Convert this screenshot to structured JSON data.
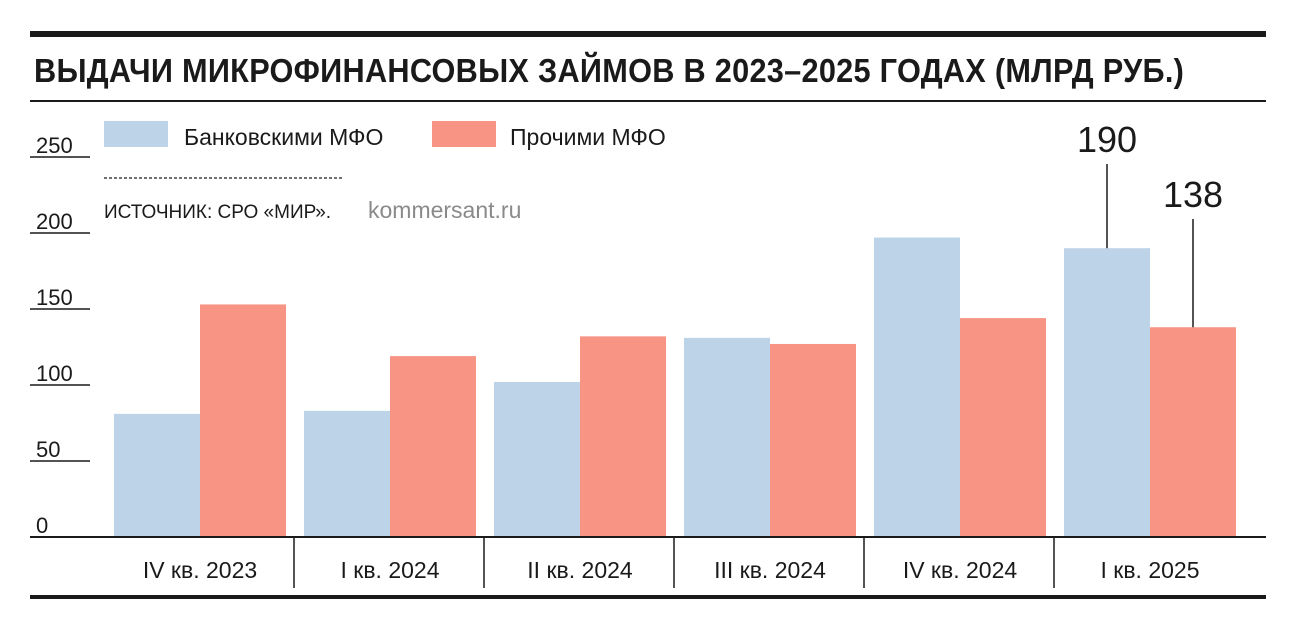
{
  "chart_data": {
    "type": "bar",
    "title": "ВЫДАЧИ МИКРОФИНАНСОВЫХ ЗАЙМОВ В 2023–2025 ГОДАХ (МЛРД РУБ.)",
    "categories": [
      "IV кв. 2023",
      "I кв. 2024",
      "II кв. 2024",
      "III кв. 2024",
      "IV кв. 2024",
      "I кв. 2025"
    ],
    "series": [
      {
        "name": "Банковскими МФО",
        "color": "#bdd4e8",
        "values": [
          81,
          83,
          102,
          131,
          197,
          190
        ]
      },
      {
        "name": "Прочими МФО",
        "color": "#f79484",
        "values": [
          153,
          119,
          132,
          127,
          144,
          138
        ]
      }
    ],
    "ylim": [
      0,
      250
    ],
    "yticks": [
      "0",
      "50",
      "100",
      "150",
      "200",
      "250"
    ],
    "annotations": [
      {
        "series": 0,
        "index": 5,
        "label": "190"
      },
      {
        "series": 1,
        "index": 5,
        "label": "138"
      }
    ],
    "legend_position": "top-left",
    "grid": false
  },
  "source": "ИСТОЧНИК: СРО «МИР».",
  "watermark": "kommersant.ru"
}
